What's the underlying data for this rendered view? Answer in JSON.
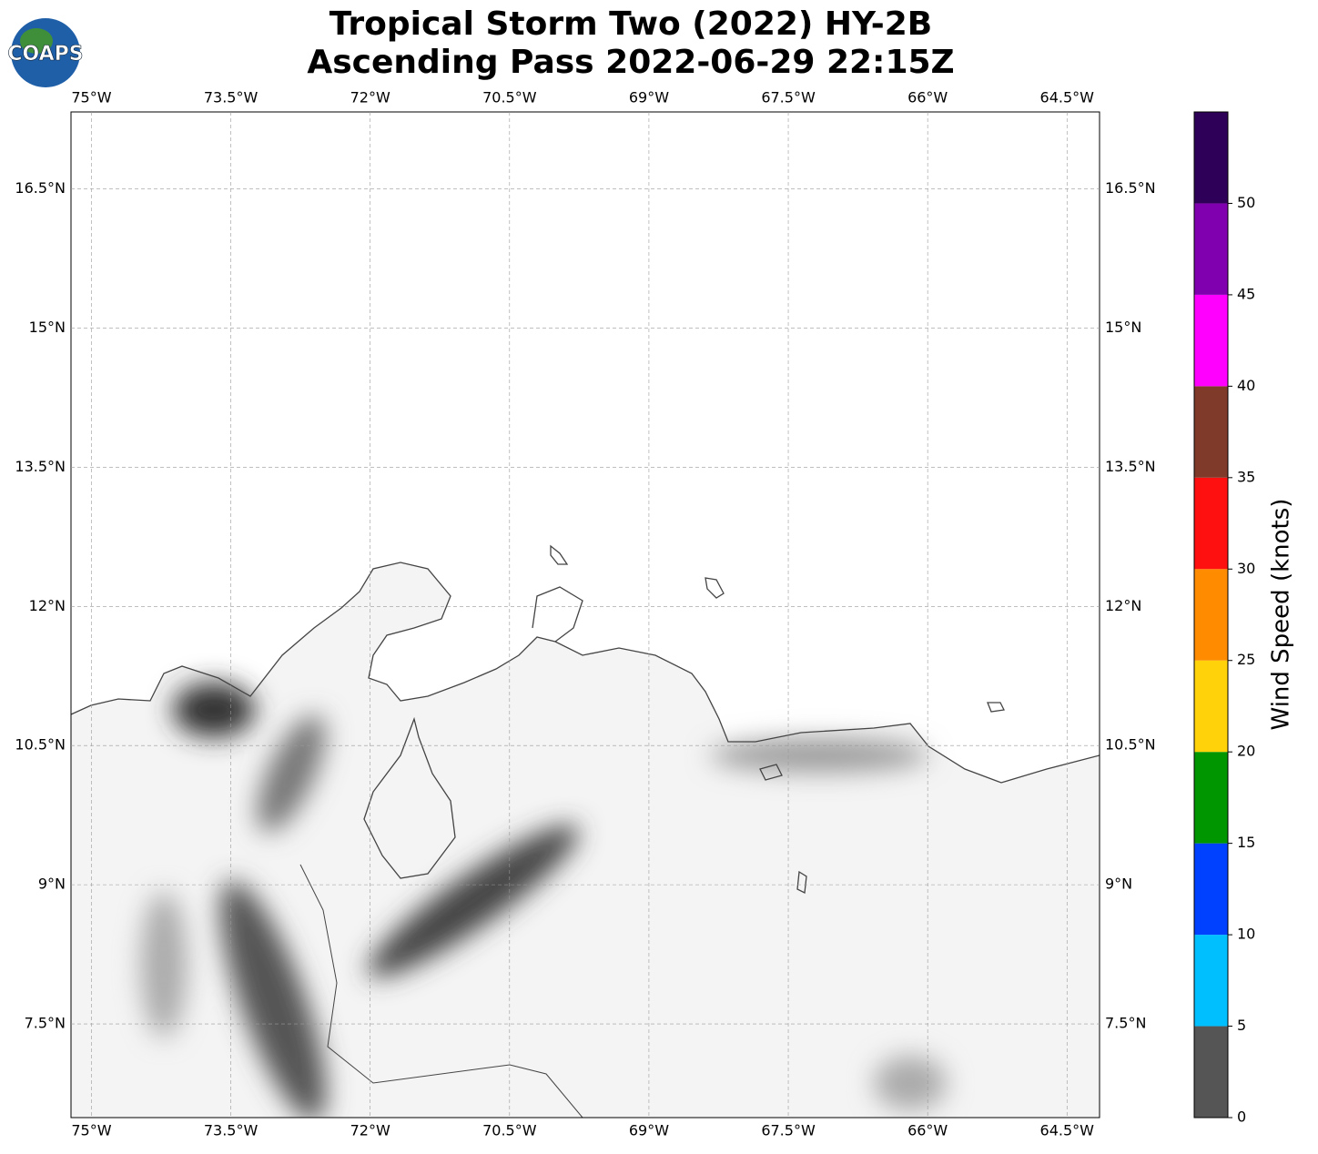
{
  "title": [
    "Tropical Storm Two (2022) HY-2B",
    "Ascending Pass 2022-06-29 22:15Z"
  ],
  "logo": "COAPS",
  "map": {
    "xlim": [
      -75.22,
      -64.15
    ],
    "ylim": [
      6.49,
      17.33
    ],
    "xticks": [
      {
        "value": -75,
        "label": "75°W"
      },
      {
        "value": -73.5,
        "label": "73.5°W"
      },
      {
        "value": -72,
        "label": "72°W"
      },
      {
        "value": -70.5,
        "label": "70.5°W"
      },
      {
        "value": -69,
        "label": "69°W"
      },
      {
        "value": -67.5,
        "label": "67.5°W"
      },
      {
        "value": -66,
        "label": "66°W"
      },
      {
        "value": -64.5,
        "label": "64.5°W"
      }
    ],
    "yticks": [
      {
        "value": 7.5,
        "label": "7.5°N"
      },
      {
        "value": 9,
        "label": "9°N"
      },
      {
        "value": 10.5,
        "label": "10.5°N"
      },
      {
        "value": 12,
        "label": "12°N"
      },
      {
        "value": 13.5,
        "label": "13.5°N"
      },
      {
        "value": 15,
        "label": "15°N"
      },
      {
        "value": 16.5,
        "label": "16.5°N"
      }
    ],
    "grid": true
  },
  "colorbar": {
    "label": "Wind Speed (knots)",
    "lim": [
      0,
      55
    ],
    "bounds": [
      0,
      5,
      10,
      15,
      20,
      25,
      30,
      35,
      40,
      45,
      50,
      55
    ],
    "colors": [
      "#555555",
      "#00bfff",
      "#0040ff",
      "#009600",
      "#ffd20a",
      "#ff8c00",
      "#ff1010",
      "#7f3a2a",
      "#ff00ff",
      "#8000b0",
      "#2e0057"
    ],
    "ticks": [
      0,
      5,
      10,
      15,
      20,
      25,
      30,
      35,
      40,
      45,
      50
    ]
  }
}
